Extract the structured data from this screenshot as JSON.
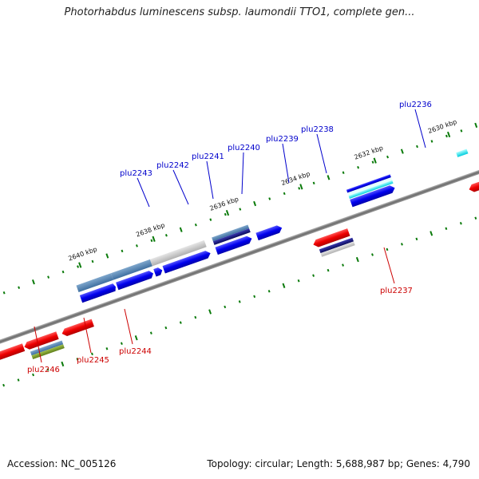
{
  "title": "Photorhabdus luminescens subsp. laumondii TTO1, complete gen...",
  "footer": {
    "accession": "Accession: NC_005126",
    "stats": "Topology: circular; Length: 5,688,987 bp; Genes: 4,790"
  },
  "colors": {
    "forward_gene": "#0000ee",
    "reverse_gene": "#ee0000",
    "backbone": "#808080",
    "tick": "#0a7a0a",
    "forward_label": "#0000cc",
    "reverse_label": "#cc0000"
  },
  "scale_ticks": [
    {
      "label": "2640 kbp"
    },
    {
      "label": "2638 kbp"
    },
    {
      "label": "2636 kbp"
    },
    {
      "label": "2634 kbp"
    },
    {
      "label": "2632 kbp"
    },
    {
      "label": "2630 kbp"
    }
  ],
  "forward_genes": [
    {
      "name": "plu2243"
    },
    {
      "name": "plu2242"
    },
    {
      "name": "plu2241"
    },
    {
      "name": "plu2240"
    },
    {
      "name": "plu2239"
    },
    {
      "name": "plu2238"
    },
    {
      "name": "plu2236"
    }
  ],
  "reverse_genes": [
    {
      "name": "plu2246"
    },
    {
      "name": "plu2245"
    },
    {
      "name": "plu2244"
    },
    {
      "name": "plu2237"
    }
  ]
}
